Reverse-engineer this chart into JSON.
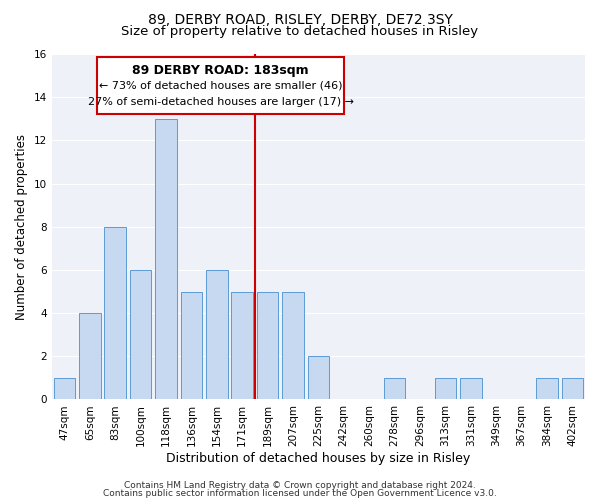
{
  "title": "89, DERBY ROAD, RISLEY, DERBY, DE72 3SY",
  "subtitle": "Size of property relative to detached houses in Risley",
  "xlabel": "Distribution of detached houses by size in Risley",
  "ylabel": "Number of detached properties",
  "categories": [
    "47sqm",
    "65sqm",
    "83sqm",
    "100sqm",
    "118sqm",
    "136sqm",
    "154sqm",
    "171sqm",
    "189sqm",
    "207sqm",
    "225sqm",
    "242sqm",
    "260sqm",
    "278sqm",
    "296sqm",
    "313sqm",
    "331sqm",
    "349sqm",
    "367sqm",
    "384sqm",
    "402sqm"
  ],
  "values": [
    1,
    4,
    8,
    6,
    13,
    5,
    6,
    5,
    5,
    5,
    2,
    0,
    0,
    1,
    0,
    1,
    1,
    0,
    0,
    1,
    1
  ],
  "bar_color": "#c6d9f0",
  "bar_edge_color": "#5b9bd5",
  "ylim": [
    0,
    16
  ],
  "yticks": [
    0,
    2,
    4,
    6,
    8,
    10,
    12,
    14,
    16
  ],
  "vline_color": "#cc0000",
  "annotation_title": "89 DERBY ROAD: 183sqm",
  "annotation_line1": "← 73% of detached houses are smaller (46)",
  "annotation_line2": "27% of semi-detached houses are larger (17) →",
  "annotation_box_color": "#ffffff",
  "annotation_box_edge": "#cc0000",
  "footer1": "Contains HM Land Registry data © Crown copyright and database right 2024.",
  "footer2": "Contains public sector information licensed under the Open Government Licence v3.0.",
  "title_fontsize": 10,
  "subtitle_fontsize": 9.5,
  "xlabel_fontsize": 9,
  "ylabel_fontsize": 8.5,
  "tick_fontsize": 7.5,
  "annotation_title_fontsize": 9,
  "annotation_line_fontsize": 8,
  "footer_fontsize": 6.5,
  "bg_color": "#eef2f8",
  "grid_color": "#ffffff"
}
